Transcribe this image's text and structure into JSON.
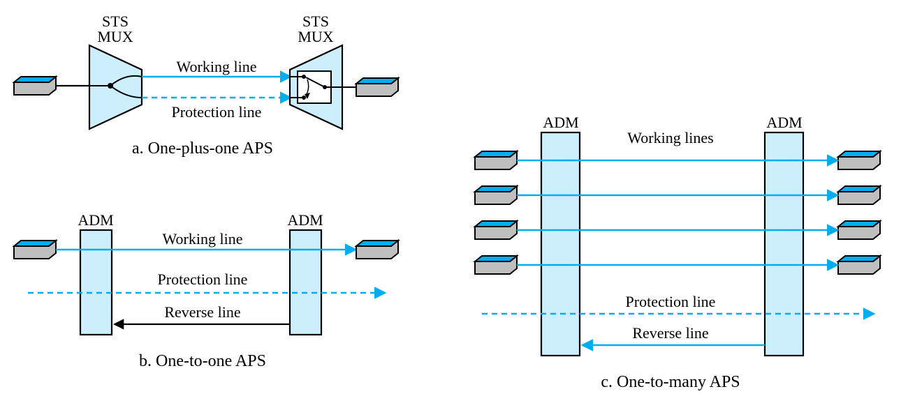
{
  "colors": {
    "accent": "#00aeef",
    "accent_light": "#cdeefc",
    "node_fill": "#bfbfbf",
    "node_top": "#00aeef",
    "stroke": "#000000",
    "text": "#000000"
  },
  "stroke_width": 2.2,
  "panel_a": {
    "title_left": "STS\nMUX",
    "title_right": "STS\nMUX",
    "working_label": "Working line",
    "protection_label": "Protection line",
    "caption": "a. One-plus-one APS"
  },
  "panel_b": {
    "title_left": "ADM",
    "title_right": "ADM",
    "working_label": "Working line",
    "protection_label": "Protection line",
    "reverse_label": "Reverse line",
    "caption": "b. One-to-one APS"
  },
  "panel_c": {
    "title_left": "ADM",
    "title_right": "ADM",
    "working_label": "Working lines",
    "protection_label": "Protection line",
    "reverse_label": "Reverse line",
    "caption": "c. One-to-many APS",
    "line_count": 4
  }
}
